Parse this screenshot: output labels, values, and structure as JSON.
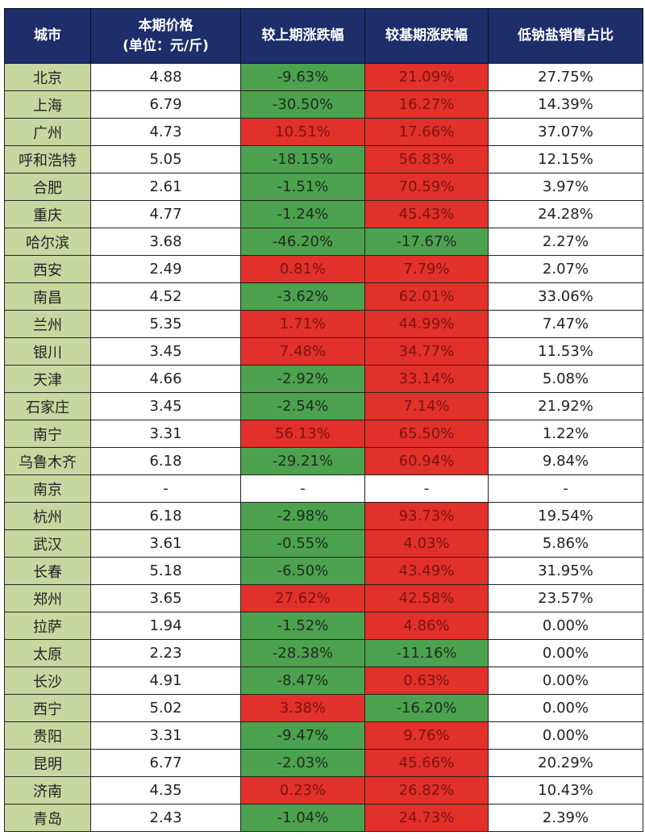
{
  "headers": [
    "城市",
    "本期价格\n(单位：元/斤)",
    "较上期涨跌幅",
    "较基期涨跌幅",
    "低钠盐销售占比"
  ],
  "header_lines": {
    "price_line1": "本期价格",
    "price_line2": "(单位：元/斤)"
  },
  "colors": {
    "header": "#1d2e6a",
    "city": "#c8d6a0",
    "decrease": "#4ca24e",
    "increase": "#e2302a"
  },
  "rows": [
    [
      "北京",
      "4.88",
      "-9.63%",
      "21.09%",
      "27.75%"
    ],
    [
      "上海",
      "6.79",
      "-30.50%",
      "16.27%",
      "14.39%"
    ],
    [
      "广州",
      "4.73",
      "10.51%",
      "17.66%",
      "37.07%"
    ],
    [
      "呼和浩特",
      "5.05",
      "-18.15%",
      "56.83%",
      "12.15%"
    ],
    [
      "合肥",
      "2.61",
      "-1.51%",
      "70.59%",
      "3.97%"
    ],
    [
      "重庆",
      "4.77",
      "-1.24%",
      "45.43%",
      "24.28%"
    ],
    [
      "哈尔滨",
      "3.68",
      "-46.20%",
      "-17.67%",
      "2.27%"
    ],
    [
      "西安",
      "2.49",
      "0.81%",
      "7.79%",
      "2.07%"
    ],
    [
      "南昌",
      "4.52",
      "-3.62%",
      "62.01%",
      "33.06%"
    ],
    [
      "兰州",
      "5.35",
      "1.71%",
      "44.99%",
      "7.47%"
    ],
    [
      "银川",
      "3.45",
      "7.48%",
      "34.77%",
      "11.53%"
    ],
    [
      "天津",
      "4.66",
      "-2.92%",
      "33.14%",
      "5.08%"
    ],
    [
      "石家庄",
      "3.45",
      "-2.54%",
      "7.14%",
      "21.92%"
    ],
    [
      "南宁",
      "3.31",
      "56.13%",
      "65.50%",
      "1.22%"
    ],
    [
      "乌鲁木齐",
      "6.18",
      "-29.21%",
      "60.94%",
      "9.84%"
    ],
    [
      "南京",
      "-",
      "-",
      "-",
      "-"
    ],
    [
      "杭州",
      "6.18",
      "-2.98%",
      "93.73%",
      "19.54%"
    ],
    [
      "武汉",
      "3.61",
      "-0.55%",
      "4.03%",
      "5.86%"
    ],
    [
      "长春",
      "5.18",
      "-6.50%",
      "43.49%",
      "31.95%"
    ],
    [
      "郑州",
      "3.65",
      "27.62%",
      "42.58%",
      "23.57%"
    ],
    [
      "拉萨",
      "1.94",
      "-1.52%",
      "4.86%",
      "0.00%"
    ],
    [
      "太原",
      "2.23",
      "-28.38%",
      "-11.16%",
      "0.00%"
    ],
    [
      "长沙",
      "4.91",
      "-8.47%",
      "0.63%",
      "0.00%"
    ],
    [
      "西宁",
      "5.02",
      "3.38%",
      "-16.20%",
      "0.00%"
    ],
    [
      "贵阳",
      "3.31",
      "-9.47%",
      "9.76%",
      "0.00%"
    ],
    [
      "昆明",
      "6.77",
      "-2.03%",
      "45.66%",
      "20.29%"
    ],
    [
      "济南",
      "4.35",
      "0.23%",
      "26.82%",
      "10.43%"
    ],
    [
      "青岛",
      "2.43",
      "-1.04%",
      "24.73%",
      "2.39%"
    ]
  ]
}
